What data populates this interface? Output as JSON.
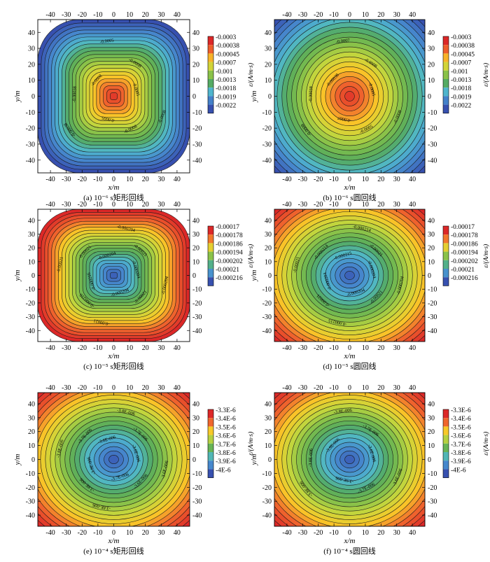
{
  "figure": {
    "panels": [
      {
        "caption": "(a) 10⁻⁶ s矩形回线",
        "xlabel": "x/m",
        "ylabel": "y/m",
        "colorbar_label": "ε/(A/m·s)",
        "colorbar_ticks": [
          "-0.0003",
          "-0.00038",
          "-0.00045",
          "-0.0007",
          "-0.001",
          "-0.0013",
          "-0.0018",
          "-0.0019",
          "-0.0022"
        ],
        "contour_labels": [
          "-0.0005",
          "-0.0008",
          "-0.0005",
          "-0.0008",
          "-0.00038",
          "-0.00038",
          "-0.0005",
          "-0.0008",
          "-0.0008"
        ],
        "colors": {
          "center": "#e8392a",
          "mid": "#7cc04a",
          "corner": "#3a7fc8"
        }
      },
      {
        "caption": "(b) 10⁻⁶ s圆回线",
        "xlabel": "x/m",
        "ylabel": "y/m",
        "colorbar_label": "ε/(A/m·s)",
        "colorbar_ticks": [
          "-0.0003",
          "-0.00038",
          "-0.00045",
          "-0.0007",
          "-0.001",
          "-0.0013",
          "-0.0018",
          "-0.0019",
          "-0.0022"
        ],
        "contour_labels": [
          "-0.0005",
          "-0.0008",
          "-0.0007",
          "-0.00038",
          "-0.00038",
          "-0.0008",
          "-0.0007",
          "-0.0005",
          "-0.0008"
        ],
        "colors": {
          "center": "#e8392a",
          "mid": "#7cc04a",
          "corner": "#2f5fb8"
        }
      },
      {
        "caption": "(c) 10⁻⁵ s矩形回线",
        "xlabel": "x/m",
        "ylabel": "y/m",
        "colorbar_label": "ε/(A/m·s)",
        "colorbar_ticks": [
          "-0.00017",
          "-0.000178",
          "-0.000186",
          "-0.000194",
          "-0.000202",
          "-0.00021",
          "-0.000216"
        ],
        "contour_labels": [
          "-0.000204",
          "-0.00021",
          "-0.000204",
          "-0.000204",
          "-0.00021",
          "-0.00021",
          "-0.000216",
          "-0.000216",
          "-0.00021",
          "-0.000204",
          "-0.00021",
          "-0.000204"
        ],
        "colors": {
          "center": "#3a54b4",
          "mid": "#8cc641",
          "corner": "#e8392a"
        }
      },
      {
        "caption": "(d) 10⁻⁵ s圆回线",
        "xlabel": "x/m",
        "ylabel": "y/m",
        "colorbar_label": "ε/(A/m·s)",
        "colorbar_ticks": [
          "-0.00017",
          "-0.000178",
          "-0.000186",
          "-0.000194",
          "-0.000202",
          "-0.00021",
          "-0.000216"
        ],
        "contour_labels": [
          "-0.000204",
          "-0.00021",
          "-0.000214",
          "-0.000215",
          "-0.000214",
          "-0.00021",
          "-0.000204",
          "-0.00021",
          "-0.000215",
          "-0.000204",
          "-0.00021",
          "-0.000204"
        ],
        "colors": {
          "center": "#3a54b4",
          "mid": "#8cc641",
          "corner": "#e8392a"
        }
      },
      {
        "caption": "(e) 10⁻⁴ s矩形回线",
        "xlabel": "x/m",
        "ylabel": "y/m",
        "colorbar_label": "ε/(A/m·s)",
        "colorbar_ticks": [
          "-3.3E-6",
          "-3.4E-6",
          "-3.5E-6",
          "-3.6E-6",
          "-3.7E-6",
          "-3.8E-6",
          "-3.9E-6",
          "-4E-6"
        ],
        "contour_labels": [
          "-3.6E-006",
          "-3.7E-006",
          "-3.8E-006",
          "-3.6E-006",
          "-3.7E-006",
          "-3.8E-006",
          "-3.9E-006",
          "-3.8E-006",
          "-3.8E-006",
          "-3.7E-006",
          "-3.6E-006",
          "-3.6E-006"
        ],
        "colors": {
          "center": "#3a54b4",
          "mid": "#8cc641",
          "corner": "#e8392a"
        }
      },
      {
        "caption": "(f) 10⁻⁴ s圆回线",
        "xlabel": "x/m",
        "ylabel": "y/m",
        "colorbar_label": "ε/(A/m·s)",
        "colorbar_ticks": [
          "-3.3E-6",
          "-3.4E-6",
          "-3.5E-6",
          "-3.6E-6",
          "-3.7E-6",
          "-3.8E-6",
          "-3.9E-6",
          "-4E-6"
        ],
        "contour_labels": [
          "-3.6E-006",
          "-3.7E-006",
          "-3.8E-006",
          "-3.9E-006",
          "-3.8E-006",
          "-3.8E-006",
          "-3.9E-006",
          "-3.7E-006",
          "-3.6E-006"
        ],
        "colors": {
          "center": "#3a54b4",
          "mid": "#8cc641",
          "corner": "#e8392a"
        }
      }
    ]
  },
  "chart_data": [
    {
      "type": "heatmap",
      "title": "(a) 10⁻⁶ s矩形回线",
      "xlabel": "x/m",
      "ylabel": "y/m",
      "xlim": [
        -48,
        48
      ],
      "ylim": [
        -48,
        48
      ],
      "x_ticks": [
        -40,
        -30,
        -20,
        -10,
        0,
        10,
        20,
        30,
        40
      ],
      "y_ticks": [
        40,
        30,
        20,
        10,
        0,
        -10,
        -20,
        -30,
        -40
      ],
      "colorbar_label": "ε/(A/m·s)",
      "levels": [
        -0.0003,
        -0.00038,
        -0.00045,
        -0.0007,
        -0.001,
        -0.0013,
        -0.0018,
        -0.0019,
        -0.0022
      ],
      "shape": "square",
      "center_value": -0.0003,
      "corner_value": -0.0022,
      "contour_labels": [
        -0.0005,
        -0.0008,
        -0.00038
      ]
    },
    {
      "type": "heatmap",
      "title": "(b) 10⁻⁶ s圆回线",
      "xlabel": "x/m",
      "ylabel": "y/m",
      "xlim": [
        -48,
        48
      ],
      "ylim": [
        -48,
        48
      ],
      "x_ticks": [
        -40,
        -30,
        -20,
        -10,
        0,
        10,
        20,
        30,
        40
      ],
      "y_ticks": [
        40,
        30,
        20,
        10,
        0,
        -10,
        -20,
        -30,
        -40
      ],
      "colorbar_label": "ε/(A/m·s)",
      "levels": [
        -0.0003,
        -0.00038,
        -0.00045,
        -0.0007,
        -0.001,
        -0.0013,
        -0.0018,
        -0.0019,
        -0.0022
      ],
      "shape": "circle",
      "center_value": -0.0003,
      "corner_value": -0.0022,
      "contour_labels": [
        -0.0005,
        -0.0007,
        -0.0008,
        -0.00038
      ]
    },
    {
      "type": "heatmap",
      "title": "(c) 10⁻⁵ s矩形回线",
      "xlabel": "x/m",
      "ylabel": "y/m",
      "xlim": [
        -48,
        48
      ],
      "ylim": [
        -48,
        48
      ],
      "x_ticks": [
        -40,
        -30,
        -20,
        -10,
        0,
        10,
        20,
        30,
        40
      ],
      "y_ticks": [
        40,
        30,
        20,
        10,
        0,
        -10,
        -20,
        -30,
        -40
      ],
      "colorbar_label": "ε/(A/m·s)",
      "levels": [
        -0.00017,
        -0.000178,
        -0.000186,
        -0.000194,
        -0.000202,
        -0.00021,
        -0.000216
      ],
      "shape": "square",
      "center_value": -0.000216,
      "corner_value": -0.00017,
      "contour_labels": [
        -0.000204,
        -0.00021,
        -0.000216
      ]
    },
    {
      "type": "heatmap",
      "title": "(d) 10⁻⁵ s圆回线",
      "xlabel": "x/m",
      "ylabel": "y/m",
      "xlim": [
        -48,
        48
      ],
      "ylim": [
        -48,
        48
      ],
      "x_ticks": [
        -40,
        -30,
        -20,
        -10,
        0,
        10,
        20,
        30,
        40
      ],
      "y_ticks": [
        40,
        30,
        20,
        10,
        0,
        -10,
        -20,
        -30,
        -40
      ],
      "colorbar_label": "ε/(A/m·s)",
      "levels": [
        -0.00017,
        -0.000178,
        -0.000186,
        -0.000194,
        -0.000202,
        -0.00021,
        -0.000216
      ],
      "shape": "circle",
      "center_value": -0.000216,
      "corner_value": -0.00017,
      "contour_labels": [
        -0.000204,
        -0.00021,
        -0.000214,
        -0.000215
      ]
    },
    {
      "type": "heatmap",
      "title": "(e) 10⁻⁴ s矩形回线",
      "xlabel": "x/m",
      "ylabel": "y/m",
      "xlim": [
        -48,
        48
      ],
      "ylim": [
        -48,
        48
      ],
      "x_ticks": [
        -40,
        -30,
        -20,
        -10,
        0,
        10,
        20,
        30,
        40
      ],
      "y_ticks": [
        40,
        30,
        20,
        10,
        0,
        -10,
        -20,
        -30,
        -40
      ],
      "colorbar_label": "ε/(A/m·s)",
      "levels": [
        -3.3e-06,
        -3.4e-06,
        -3.5e-06,
        -3.6e-06,
        -3.7e-06,
        -3.8e-06,
        -3.9e-06,
        -4e-06
      ],
      "shape": "circle",
      "center_value": -4e-06,
      "corner_value": -3.3e-06,
      "contour_labels": [
        -3.6e-06,
        -3.7e-06,
        -3.8e-06,
        -3.9e-06
      ]
    },
    {
      "type": "heatmap",
      "title": "(f) 10⁻⁴ s圆回线",
      "xlabel": "x/m",
      "ylabel": "y/m",
      "xlim": [
        -48,
        48
      ],
      "ylim": [
        -48,
        48
      ],
      "x_ticks": [
        -40,
        -30,
        -20,
        -10,
        0,
        10,
        20,
        30,
        40
      ],
      "y_ticks": [
        40,
        30,
        20,
        10,
        0,
        -10,
        -20,
        -30,
        -40
      ],
      "colorbar_label": "ε/(A/m·s)",
      "levels": [
        -3.3e-06,
        -3.4e-06,
        -3.5e-06,
        -3.6e-06,
        -3.7e-06,
        -3.8e-06,
        -3.9e-06,
        -4e-06
      ],
      "shape": "circle",
      "center_value": -4e-06,
      "corner_value": -3.3e-06,
      "contour_labels": [
        -3.6e-06,
        -3.7e-06,
        -3.8e-06,
        -3.9e-06
      ]
    }
  ]
}
